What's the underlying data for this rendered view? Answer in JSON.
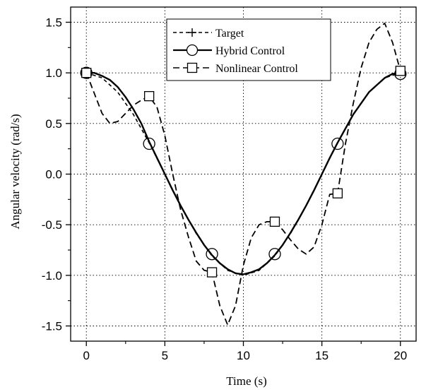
{
  "chart_data": {
    "type": "line",
    "title": "",
    "xlabel": "Time (s)",
    "ylabel": "Angular velocity (rad/s)",
    "xlim": [
      -1,
      21
    ],
    "ylim": [
      -1.65,
      1.65
    ],
    "xticks": [
      0,
      5,
      10,
      15,
      20
    ],
    "yticks": [
      -1.5,
      -1.0,
      -0.5,
      0.0,
      0.5,
      1.0,
      1.5
    ],
    "xtick_labels": [
      "0",
      "5",
      "10",
      "15",
      "20"
    ],
    "ytick_labels": [
      "-1.5",
      "-1.0",
      "-0.5",
      "0.0",
      "0.5",
      "1.0",
      "1.5"
    ],
    "grid": true,
    "legend_position": "top-center",
    "series": [
      {
        "name": "Target",
        "style": "short-dash",
        "marker": "plus",
        "x": [
          0,
          1,
          2,
          3,
          4,
          5,
          6,
          7,
          8,
          9,
          10,
          11,
          12,
          13,
          14,
          15,
          16,
          17,
          18,
          19,
          20
        ],
        "y": [
          1.0,
          0.951,
          0.809,
          0.588,
          0.309,
          0.0,
          -0.309,
          -0.588,
          -0.809,
          -0.951,
          -1.0,
          -0.951,
          -0.809,
          -0.588,
          -0.309,
          0.0,
          0.309,
          0.588,
          0.809,
          0.951,
          1.0
        ],
        "marker_x": [],
        "marker_y": []
      },
      {
        "name": "Hybrid Control",
        "style": "solid",
        "marker": "circle",
        "x": [
          0,
          0.5,
          1.0,
          1.5,
          2.0,
          2.5,
          3.0,
          3.5,
          4.0,
          4.5,
          5.0,
          5.5,
          6.0,
          6.5,
          7.0,
          7.5,
          8.0,
          8.5,
          9.0,
          9.5,
          10.0,
          10.5,
          11.0,
          11.5,
          12.0,
          12.5,
          13.0,
          13.5,
          14.0,
          14.5,
          15.0,
          15.5,
          16.0,
          16.5,
          17.0,
          17.5,
          18.0,
          18.5,
          19.0,
          19.5,
          20.0
        ],
        "y": [
          1.0,
          1.0,
          0.97,
          0.93,
          0.86,
          0.76,
          0.64,
          0.5,
          0.32,
          0.16,
          0.0,
          -0.16,
          -0.31,
          -0.45,
          -0.58,
          -0.7,
          -0.8,
          -0.88,
          -0.94,
          -0.98,
          -0.99,
          -0.97,
          -0.94,
          -0.88,
          -0.8,
          -0.7,
          -0.58,
          -0.45,
          -0.31,
          -0.16,
          0.0,
          0.16,
          0.31,
          0.45,
          0.59,
          0.7,
          0.81,
          0.88,
          0.95,
          0.99,
          1.0
        ],
        "marker_x": [
          0,
          4,
          8,
          12,
          16,
          20
        ],
        "marker_y": [
          1.0,
          0.3,
          -0.79,
          -0.79,
          0.3,
          0.99
        ]
      },
      {
        "name": "Nonlinear Control",
        "style": "long-dash",
        "marker": "square",
        "x": [
          0,
          0.5,
          1.0,
          1.5,
          2.0,
          2.5,
          3.0,
          3.5,
          4.0,
          4.5,
          5.0,
          5.5,
          6.0,
          6.5,
          7.0,
          7.5,
          8.0,
          8.5,
          9.0,
          9.5,
          10.0,
          10.5,
          11.0,
          11.5,
          12.0,
          12.5,
          13.0,
          13.5,
          14.0,
          14.5,
          15.0,
          15.5,
          16.0,
          16.5,
          17.0,
          17.5,
          18.0,
          18.5,
          19.0,
          19.5,
          20.0
        ],
        "y": [
          1.0,
          0.8,
          0.6,
          0.5,
          0.52,
          0.6,
          0.68,
          0.73,
          0.77,
          0.66,
          0.38,
          0.0,
          -0.35,
          -0.62,
          -0.86,
          -0.95,
          -0.97,
          -1.3,
          -1.49,
          -1.3,
          -0.9,
          -0.63,
          -0.5,
          -0.47,
          -0.47,
          -0.55,
          -0.65,
          -0.74,
          -0.79,
          -0.72,
          -0.5,
          -0.2,
          -0.19,
          0.3,
          0.7,
          1.05,
          1.3,
          1.43,
          1.49,
          1.3,
          1.02
        ],
        "marker_x": [
          0,
          4,
          8,
          12,
          16,
          20
        ],
        "marker_y": [
          1.0,
          0.77,
          -0.97,
          -0.47,
          -0.19,
          1.02
        ]
      }
    ]
  }
}
